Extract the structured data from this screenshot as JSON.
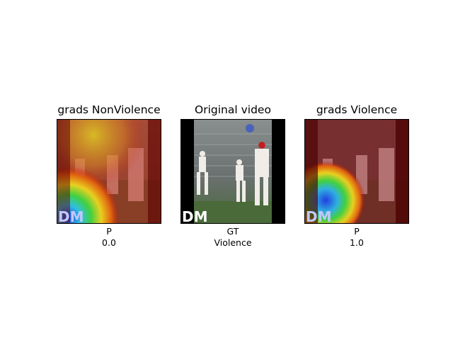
{
  "panels": [
    {
      "title": "grads NonViolence",
      "label": "P",
      "value": "0.0",
      "overlay": "nonviolence-heatmap"
    },
    {
      "title": "Original video",
      "label": "GT",
      "value": "Violence",
      "overlay": "none"
    },
    {
      "title": "grads Violence",
      "label": "P",
      "value": "1.0",
      "overlay": "violence-heatmap"
    }
  ],
  "watermark": "DM",
  "colors": {
    "heatmap_dark_red": "#7a0000",
    "heatmap_red": "#c81e0a",
    "heatmap_yellow": "#e8d020",
    "heatmap_green": "#30c040",
    "heatmap_blue": "#2040e0",
    "field_green": "#4a6a3a",
    "video_border": "#000000"
  }
}
